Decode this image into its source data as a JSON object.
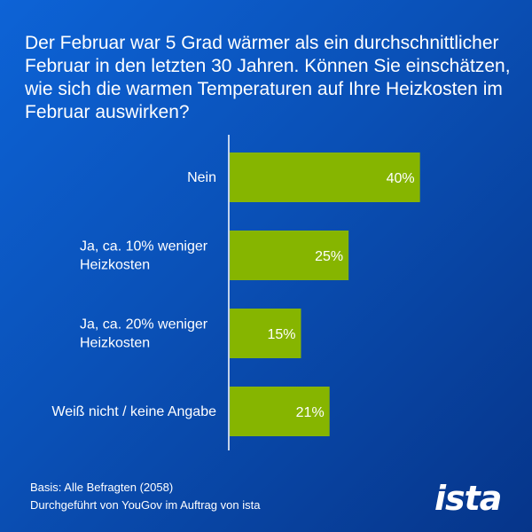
{
  "title": "Der Februar war 5 Grad wärmer als ein durchschnittlicher Februar in den letzten 30 Jahren. Können Sie einschätzen, wie sich die warmen Temperaturen auf Ihre Heizkosten im Februar auswirken?",
  "footnote": {
    "basis": "Basis: Alle Befragten (2058)",
    "conducted_by": "Durchgeführt von YouGov im Auftrag von ista"
  },
  "logo_text": "ista",
  "colors": {
    "background_start": "#0d63d6",
    "background_end": "#06358a",
    "bar": "#86b500",
    "axis": "#ffffff",
    "text": "#ffffff"
  },
  "chart_data": {
    "type": "bar",
    "orientation": "horizontal",
    "categories": [
      [
        "Nein"
      ],
      [
        "Ja, ca. 10% weniger",
        "Heizkosten"
      ],
      [
        "Ja, ca. 20% weniger",
        "Heizkosten"
      ],
      [
        "Weiß nicht / keine Angabe"
      ]
    ],
    "values": [
      40,
      25,
      15,
      21
    ],
    "value_labels": [
      "40%",
      "25%",
      "15%",
      "21%"
    ],
    "unit": "%",
    "xlim": [
      0,
      60
    ],
    "grid": false,
    "legend": "none"
  }
}
